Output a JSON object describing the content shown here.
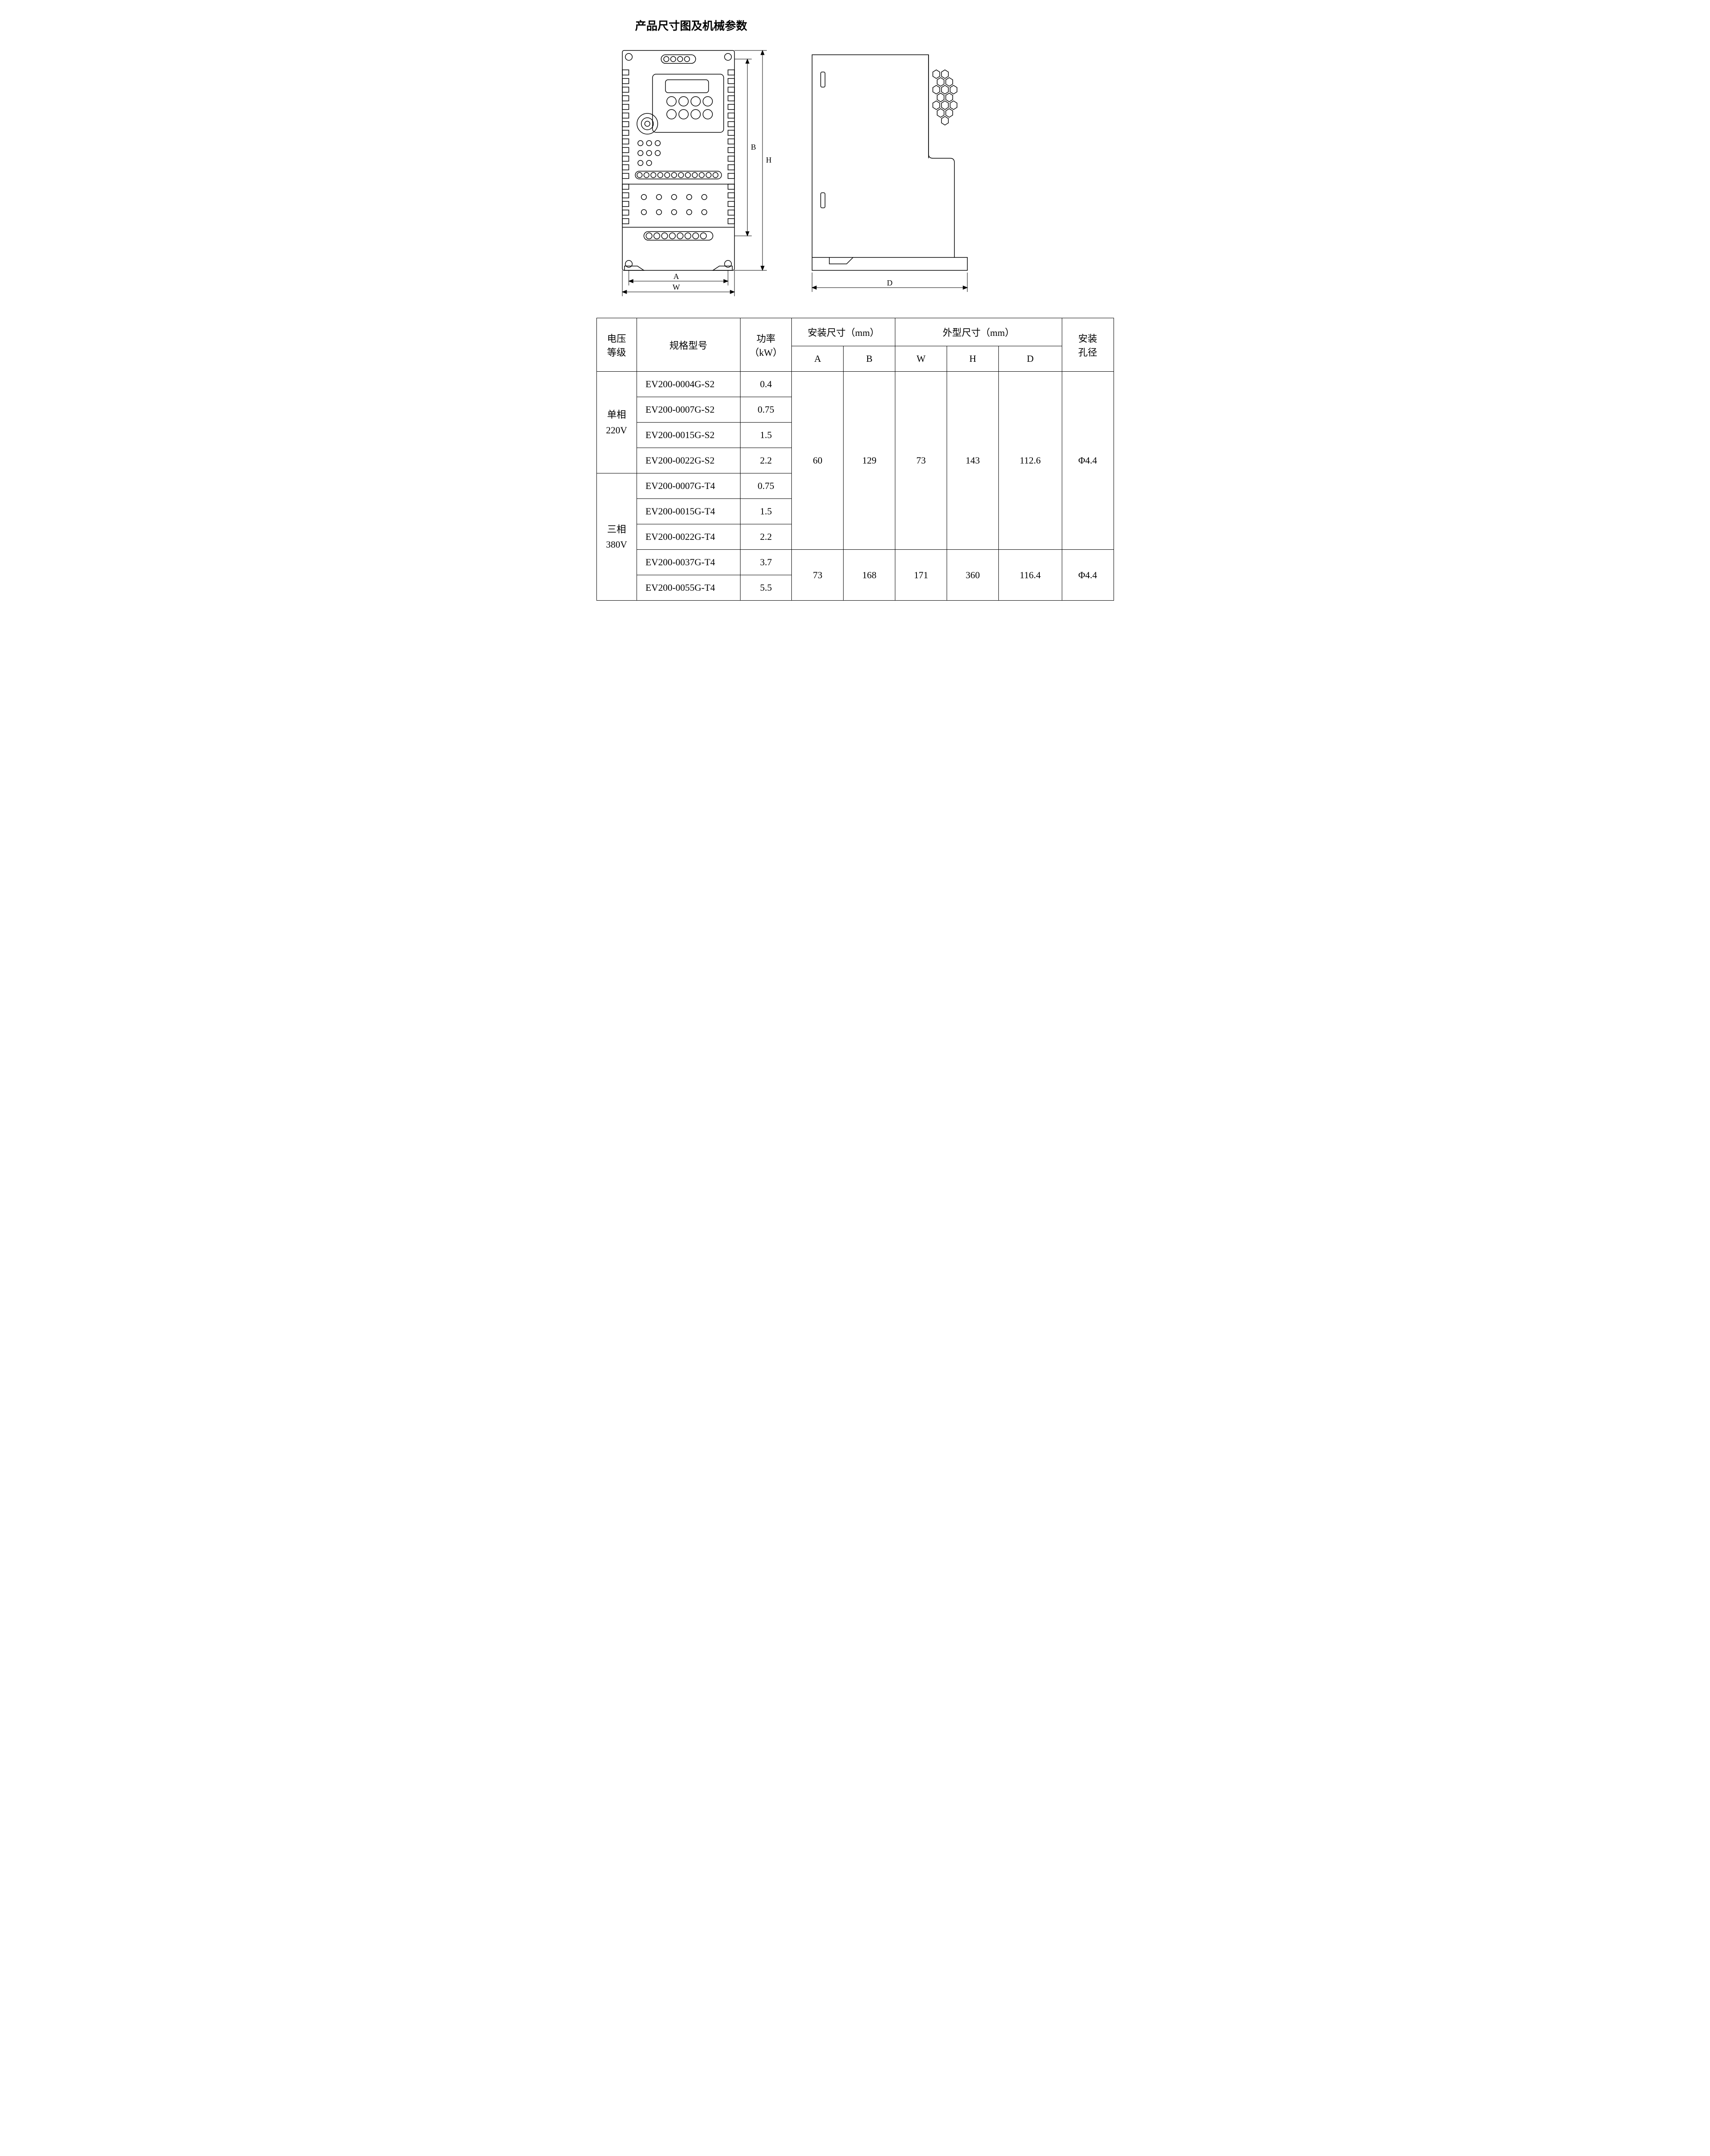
{
  "title": "产品尺寸图及机械参数",
  "diagram": {
    "stroke": "#000000",
    "stroke_width": 1.5,
    "fill": "#ffffff",
    "dim_labels": {
      "A": "A",
      "W": "W",
      "B": "B",
      "H": "H",
      "D": "D"
    }
  },
  "table": {
    "headers": {
      "voltage": "电压\n等级",
      "model": "规格型号",
      "power": "功率\n（kW）",
      "install_dim": "安装尺寸（mm）",
      "outer_dim": "外型尺寸（mm）",
      "hole": "安装\n孔径",
      "A": "A",
      "B": "B",
      "W": "W",
      "H": "H",
      "D": "D"
    },
    "groups": [
      {
        "voltage": "单相\n220V",
        "rows": [
          {
            "model": "EV200-0004G-S2",
            "power": "0.4"
          },
          {
            "model": "EV200-0007G-S2",
            "power": "0.75"
          },
          {
            "model": "EV200-0015G-S2",
            "power": "1.5"
          },
          {
            "model": "EV200-0022G-S2",
            "power": "2.2"
          }
        ]
      },
      {
        "voltage": "三相\n380V",
        "rows": [
          {
            "model": "EV200-0007G-T4",
            "power": "0.75"
          },
          {
            "model": "EV200-0015G-T4",
            "power": "1.5"
          },
          {
            "model": "EV200-0022G-T4",
            "power": "2.2"
          },
          {
            "model": "EV200-0037G-T4",
            "power": "3.7"
          },
          {
            "model": "EV200-0055G-T4",
            "power": "5.5"
          }
        ]
      }
    ],
    "dim_blocks": [
      {
        "rowspan": 7,
        "A": "60",
        "B": "129",
        "W": "73",
        "H": "143",
        "D": "112.6",
        "hole": "Φ4.4"
      },
      {
        "rowspan": 2,
        "A": "73",
        "B": "168",
        "W": "171",
        "H": "360",
        "D": "116.4",
        "hole": "Φ4.4"
      }
    ]
  }
}
